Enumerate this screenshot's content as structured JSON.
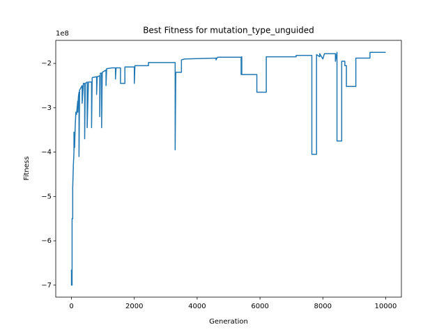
{
  "chart_data": {
    "type": "line",
    "title": "Best Fitness for mutation_type_unguided",
    "xlabel": "Generation",
    "ylabel": "Fitness",
    "offset_text": "1e8",
    "color": "#1f77b4",
    "xlim": [
      -500,
      10500
    ],
    "ylim": [
      -7.27,
      -1.48
    ],
    "xticks": [
      0,
      2000,
      4000,
      6000,
      8000,
      10000
    ],
    "yticks": [
      {
        "value": -7,
        "label": "−7"
      },
      {
        "value": -6,
        "label": "−6"
      },
      {
        "value": -5,
        "label": "−5"
      },
      {
        "value": -4,
        "label": "−4"
      },
      {
        "value": -3,
        "label": "−3"
      },
      {
        "value": -2,
        "label": "−2"
      }
    ],
    "x": [
      0,
      0,
      20,
      20,
      40,
      40,
      60,
      80,
      80,
      100,
      120,
      140,
      160,
      180,
      200,
      200,
      220,
      240,
      240,
      260,
      300,
      340,
      340,
      380,
      420,
      420,
      440,
      500,
      500,
      540,
      640,
      640,
      660,
      800,
      800,
      820,
      900,
      900,
      920,
      960,
      960,
      980,
      1100,
      1100,
      1120,
      1300,
      1400,
      1400,
      1420,
      1560,
      1560,
      1700,
      1700,
      2000,
      2000,
      2020,
      2450,
      2450,
      3300,
      3300,
      3320,
      3500,
      3500,
      3600,
      4600,
      4600,
      4650,
      5400,
      5400,
      5420,
      5420,
      5900,
      5900,
      6200,
      6200,
      7150,
      7150,
      7650,
      7650,
      7800,
      7800,
      7900,
      7900,
      8000,
      8050,
      8400,
      8400,
      8450,
      8450,
      8600,
      8600,
      8700,
      8700,
      8750,
      8750,
      9050,
      9050,
      9500,
      9500,
      10000
    ],
    "values": [
      -6.65,
      -7.0,
      -7.0,
      -5.5,
      -5.5,
      -4.8,
      -4.3,
      -4.0,
      -3.55,
      -3.9,
      -3.4,
      -3.1,
      -3.15,
      -3.0,
      -2.85,
      -3.1,
      -2.75,
      -2.65,
      -4.1,
      -2.6,
      -2.55,
      -2.5,
      -2.9,
      -2.45,
      -2.45,
      -3.7,
      -2.45,
      -2.42,
      -3.45,
      -2.42,
      -2.42,
      -3.45,
      -2.32,
      -2.3,
      -2.7,
      -2.3,
      -2.28,
      -3.2,
      -2.22,
      -2.22,
      -3.45,
      -2.2,
      -2.15,
      -2.5,
      -2.12,
      -2.1,
      -2.1,
      -2.35,
      -2.1,
      -2.1,
      -2.45,
      -2.45,
      -2.08,
      -2.08,
      -2.45,
      -2.05,
      -2.05,
      -1.98,
      -1.98,
      -3.95,
      -2.2,
      -2.2,
      -1.92,
      -1.9,
      -1.88,
      -1.92,
      -1.86,
      -1.86,
      -2.25,
      -1.85,
      -2.25,
      -2.25,
      -2.65,
      -2.65,
      -1.85,
      -1.85,
      -1.82,
      -1.82,
      -4.05,
      -4.05,
      -1.8,
      -1.85,
      -1.78,
      -1.9,
      -1.78,
      -1.78,
      -1.95,
      -1.75,
      -3.75,
      -3.75,
      -1.95,
      -1.95,
      -2.05,
      -2.05,
      -2.52,
      -2.52,
      -1.88,
      -1.88,
      -1.75,
      -1.75
    ]
  }
}
